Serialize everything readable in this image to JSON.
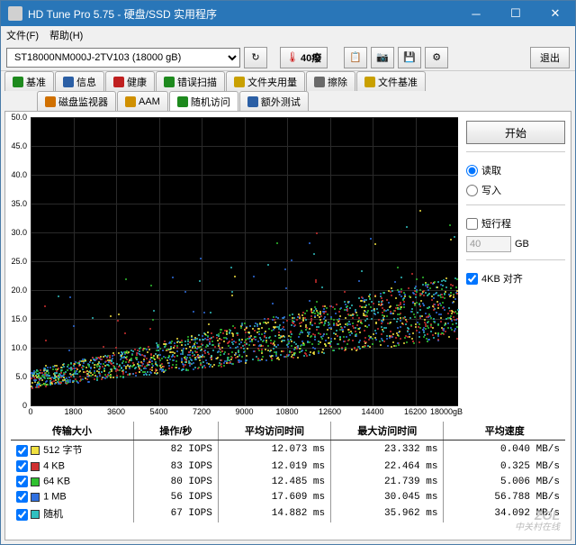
{
  "window": {
    "title": "HD Tune Pro 5.75 - 硬盘/SSD 实用程序"
  },
  "menu": {
    "file": "文件(F)",
    "help": "帮助(H)"
  },
  "toolbar": {
    "drive": "ST18000NM000J-2TV103 (18000 gB)",
    "temperature": "40癈",
    "exit": "退出"
  },
  "tabs_row1": [
    {
      "icon": "#1e8a1e",
      "label": "基准"
    },
    {
      "icon": "#2b5fa5",
      "label": "信息"
    },
    {
      "icon": "#c02020",
      "label": "健康"
    },
    {
      "icon": "#1e8a1e",
      "label": "错误扫描"
    },
    {
      "icon": "#c9a000",
      "label": "文件夹用量"
    },
    {
      "icon": "#6a6a6a",
      "label": "擦除"
    },
    {
      "icon": "#c9a000",
      "label": "文件基准"
    }
  ],
  "tabs_row2": [
    {
      "icon": "#d07000",
      "label": "磁盘监视器"
    },
    {
      "icon": "#d09000",
      "label": "AAM"
    },
    {
      "icon": "#1e8a1e",
      "label": "随机访问",
      "active": true
    },
    {
      "icon": "#2b5fa5",
      "label": "额外测试"
    }
  ],
  "side": {
    "start": "开始",
    "read": "读取",
    "write": "写入",
    "short_stroke": "短行程",
    "stroke_val": "40",
    "gb": "GB",
    "align": "4KB 对齐"
  },
  "chart": {
    "unit_y": "ms",
    "y_max": 50,
    "y_ticks": [
      0,
      5.0,
      10.0,
      15.0,
      20.0,
      25.0,
      30.0,
      35.0,
      40.0,
      45.0,
      50.0
    ],
    "x_max": 18000,
    "x_ticks": [
      0,
      1800,
      3600,
      5400,
      7200,
      9000,
      10800,
      12600,
      14400,
      16200
    ],
    "x_unit": "18000gB",
    "grid_color": "#2a2a2a",
    "background": "#000000",
    "series_colors": [
      "#f0e040",
      "#d03030",
      "#30c030",
      "#3070e0",
      "#30c0c0"
    ]
  },
  "results": {
    "headers": [
      "传输大小",
      "操作/秒",
      "平均访问时间",
      "最大访问时间",
      "平均速度"
    ],
    "rows": [
      {
        "color": "#f0e040",
        "label": "512 字节",
        "iops": "82 IOPS",
        "avg": "12.073 ms",
        "max": "23.332 ms",
        "speed": "0.040 MB/s"
      },
      {
        "color": "#d03030",
        "label": "4 KB",
        "iops": "83 IOPS",
        "avg": "12.019 ms",
        "max": "22.464 ms",
        "speed": "0.325 MB/s"
      },
      {
        "color": "#30c030",
        "label": "64 KB",
        "iops": "80 IOPS",
        "avg": "12.485 ms",
        "max": "21.739 ms",
        "speed": "5.006 MB/s"
      },
      {
        "color": "#3070e0",
        "label": "1 MB",
        "iops": "56 IOPS",
        "avg": "17.609 ms",
        "max": "30.045 ms",
        "speed": "56.788 MB/s"
      },
      {
        "color": "#30c0c0",
        "label": "随机",
        "iops": "67 IOPS",
        "avg": "14.882 ms",
        "max": "35.962 ms",
        "speed": "34.092 MB/s"
      }
    ]
  },
  "watermark": {
    "line1": "ZOL",
    "line2": "中关村在线"
  }
}
